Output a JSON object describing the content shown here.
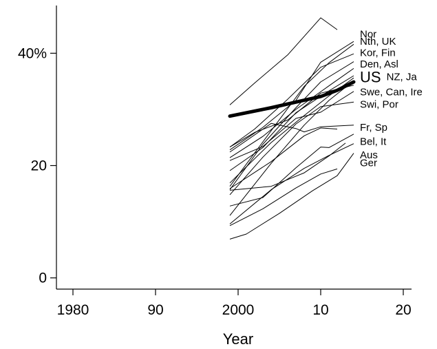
{
  "chart_data": {
    "type": "line",
    "title": "",
    "xlabel": "Year",
    "ylabel": "",
    "xlim": [
      1978,
      2021
    ],
    "ylim": [
      -2,
      48.5
    ],
    "x_ticks": [
      {
        "value": 1980,
        "label": "1980"
      },
      {
        "value": 1990,
        "label": "90"
      },
      {
        "value": 2000,
        "label": "2000"
      },
      {
        "value": 2010,
        "label": "10"
      },
      {
        "value": 2020,
        "label": "20"
      }
    ],
    "y_ticks": [
      {
        "value": 0,
        "label": "0"
      },
      {
        "value": 20,
        "label": "20"
      },
      {
        "value": 40,
        "label": "40%"
      }
    ],
    "series": [
      {
        "name": "US",
        "bold": true,
        "points": [
          [
            1999,
            28.8
          ],
          [
            2001,
            29.4
          ],
          [
            2004,
            30.3
          ],
          [
            2007,
            31.3
          ],
          [
            2010,
            32.3
          ],
          [
            2012,
            33.4
          ],
          [
            2014,
            34.9
          ]
        ]
      },
      {
        "name": "Nor",
        "points": [
          [
            1999,
            30.8
          ],
          [
            2002,
            34.7
          ],
          [
            2006,
            39.7
          ],
          [
            2010,
            46.3
          ],
          [
            2012,
            44.2
          ]
        ]
      },
      {
        "points": [
          [
            1999,
            22.8
          ],
          [
            2003,
            26.8
          ],
          [
            2007,
            31.6
          ],
          [
            2010,
            38.4
          ],
          [
            2014,
            42.1
          ]
        ]
      },
      {
        "points": [
          [
            1999,
            16.3
          ],
          [
            2004,
            26.2
          ],
          [
            2008,
            34.1
          ],
          [
            2011,
            38.3
          ],
          [
            2014,
            41.6
          ]
        ]
      },
      {
        "points": [
          [
            1999,
            23.3
          ],
          [
            2002,
            26.5
          ],
          [
            2006,
            31.8
          ],
          [
            2010,
            37.5
          ],
          [
            2014,
            39.9
          ]
        ]
      },
      {
        "points": [
          [
            1999,
            15.7
          ],
          [
            2003,
            23.8
          ],
          [
            2007,
            30.3
          ],
          [
            2010,
            34.9
          ],
          [
            2014,
            38.5
          ]
        ]
      },
      {
        "points": [
          [
            1999,
            21.4
          ],
          [
            2003,
            25.2
          ],
          [
            2007,
            30.0
          ],
          [
            2011,
            34.2
          ],
          [
            2014,
            37.3
          ]
        ]
      },
      {
        "points": [
          [
            1999,
            19.1
          ],
          [
            2003,
            23.2
          ],
          [
            2007,
            29.4
          ],
          [
            2011,
            33.3
          ],
          [
            2014,
            36.0
          ]
        ]
      },
      {
        "points": [
          [
            1999,
            16.9
          ],
          [
            2004,
            24.1
          ],
          [
            2008,
            28.9
          ],
          [
            2011,
            32.4
          ],
          [
            2014,
            35.6
          ]
        ]
      },
      {
        "points": [
          [
            1999,
            11.1
          ],
          [
            2004,
            20.4
          ],
          [
            2008,
            27.2
          ],
          [
            2011,
            31.6
          ],
          [
            2014,
            35.1
          ]
        ]
      },
      {
        "points": [
          [
            1999,
            23.3
          ],
          [
            2002,
            25.9
          ],
          [
            2006,
            28.1
          ],
          [
            2010,
            32.9
          ],
          [
            2014,
            34.3
          ]
        ]
      },
      {
        "points": [
          [
            1999,
            20.9
          ],
          [
            2003,
            23.4
          ],
          [
            2007,
            28.4
          ],
          [
            2010,
            29.5
          ],
          [
            2014,
            33.2
          ]
        ]
      },
      {
        "points": [
          [
            1999,
            14.8
          ],
          [
            2003,
            21.5
          ],
          [
            2007,
            27.4
          ],
          [
            2010,
            30.5
          ],
          [
            2014,
            31.3
          ]
        ]
      },
      {
        "points": [
          [
            1999,
            22.4
          ],
          [
            2004,
            27.5
          ],
          [
            2007,
            26.6
          ],
          [
            2008,
            26.0
          ],
          [
            2010,
            26.9
          ],
          [
            2014,
            27.2
          ]
        ]
      },
      {
        "points": [
          [
            1999,
            15.9
          ],
          [
            2004,
            20.7
          ],
          [
            2008,
            25.3
          ],
          [
            2010,
            26.7
          ],
          [
            2012,
            26.5
          ]
        ]
      },
      {
        "points": [
          [
            1999,
            12.8
          ],
          [
            2003,
            14.3
          ],
          [
            2007,
            19.6
          ],
          [
            2010,
            23.3
          ],
          [
            2011,
            23.2
          ],
          [
            2014,
            25.6
          ]
        ]
      },
      {
        "points": [
          [
            1999,
            9.6
          ],
          [
            2004,
            15.7
          ],
          [
            2008,
            19.5
          ],
          [
            2011,
            21.8
          ],
          [
            2014,
            23.9
          ]
        ]
      },
      {
        "points": [
          [
            1999,
            15.6
          ],
          [
            2004,
            16.3
          ],
          [
            2008,
            18.7
          ],
          [
            2011,
            21.7
          ],
          [
            2013,
            24.0
          ]
        ]
      },
      {
        "points": [
          [
            1999,
            6.9
          ],
          [
            2001,
            7.8
          ],
          [
            2005,
            11.5
          ],
          [
            2009,
            15.5
          ],
          [
            2012,
            18.2
          ],
          [
            2014,
            22.2
          ]
        ]
      },
      {
        "points": [
          [
            1999,
            9.3
          ],
          [
            2003,
            12.3
          ],
          [
            2007,
            16.0
          ],
          [
            2010,
            18.5
          ],
          [
            2012,
            19.4
          ]
        ]
      }
    ],
    "labels": [
      {
        "text": "Nor",
        "y": 43.4
      },
      {
        "text": "Nth, UK",
        "y": 42.1
      },
      {
        "text": "Kor, Fin",
        "y": 40.1
      },
      {
        "text": "Den, Asl",
        "y": 38.1
      },
      {
        "text": "US",
        "y": 35.8,
        "big": true
      },
      {
        "text": "NZ, Ja",
        "y": 35.8,
        "after_us": true
      },
      {
        "text": "Swe, Can, Ire",
        "y": 33.1
      },
      {
        "text": "Swi, Por",
        "y": 30.9
      },
      {
        "text": "Fr, Sp",
        "y": 26.8
      },
      {
        "text": "Bel, It",
        "y": 24.3
      },
      {
        "text": "Aus",
        "y": 21.9
      },
      {
        "text": "Ger",
        "y": 20.5
      }
    ]
  }
}
